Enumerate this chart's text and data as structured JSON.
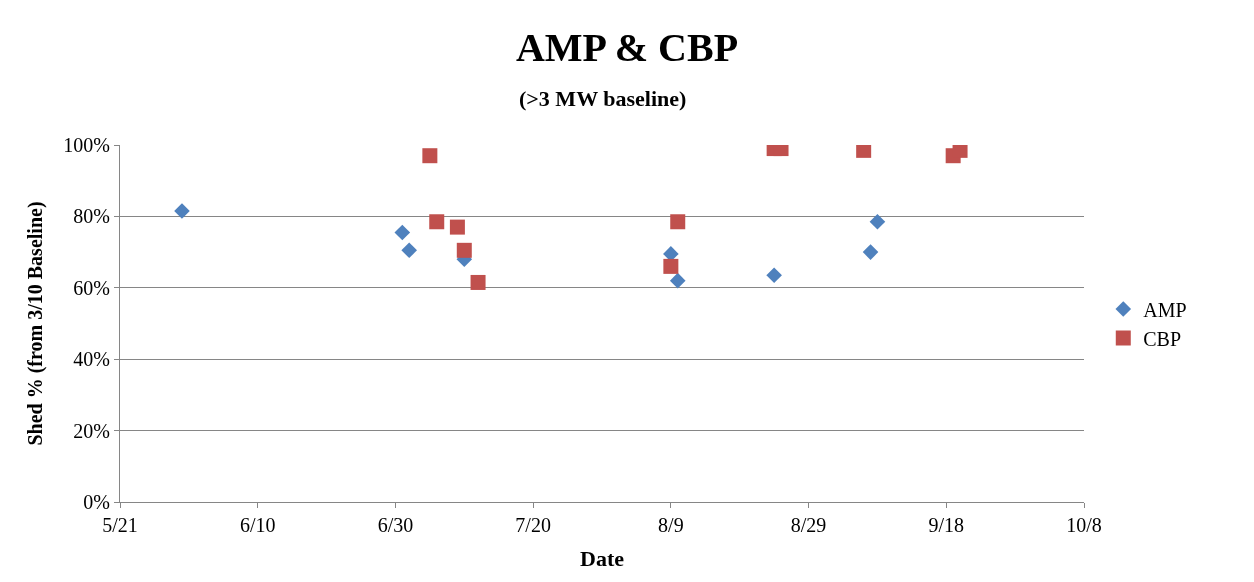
{
  "chart_data": {
    "type": "scatter",
    "title": "AMP & CBP",
    "subtitle": "(>3 MW baseline)",
    "xlabel": "Date",
    "ylabel": "Shed % (from 3/10 Baseline)",
    "xlim": [
      "--05-21",
      "--10-08"
    ],
    "xticks": [
      {
        "value": "--05-21",
        "label": "5/21"
      },
      {
        "value": "--06-10",
        "label": "6/10"
      },
      {
        "value": "--06-30",
        "label": "6/30"
      },
      {
        "value": "--07-20",
        "label": "7/20"
      },
      {
        "value": "--08-09",
        "label": "8/9"
      },
      {
        "value": "--08-29",
        "label": "8/29"
      },
      {
        "value": "--09-18",
        "label": "9/18"
      },
      {
        "value": "--10-08",
        "label": "10/8"
      }
    ],
    "ylim": [
      0,
      100
    ],
    "yticks": [
      {
        "value": 0,
        "label": "0%"
      },
      {
        "value": 20,
        "label": "20%"
      },
      {
        "value": 40,
        "label": "40%"
      },
      {
        "value": 60,
        "label": "60%"
      },
      {
        "value": 80,
        "label": "80%"
      },
      {
        "value": 100,
        "label": "100%"
      }
    ],
    "grid": "y",
    "legend": "right",
    "series": [
      {
        "name": "AMP",
        "color": "#4f81bd",
        "marker": "diamond",
        "x": [
          "--05-30",
          "--07-01",
          "--07-02",
          "--07-10",
          "--08-09",
          "--08-10",
          "--08-24",
          "--09-07",
          "--09-08"
        ],
        "values": [
          81.5,
          75.5,
          70.5,
          68,
          69.5,
          62,
          63.5,
          70,
          78.5
        ]
      },
      {
        "name": "CBP",
        "color": "#c0504d",
        "marker": "square",
        "x": [
          "--07-05",
          "--07-06",
          "--07-09",
          "--07-10",
          "--07-12",
          "--08-09",
          "--08-10",
          "--08-24",
          "--08-25",
          "--09-06",
          "--09-19",
          "--09-20"
        ],
        "values": [
          97,
          78.5,
          77,
          70.5,
          61.5,
          66,
          78.5,
          99,
          99,
          98.5,
          97,
          98.5
        ]
      }
    ]
  }
}
